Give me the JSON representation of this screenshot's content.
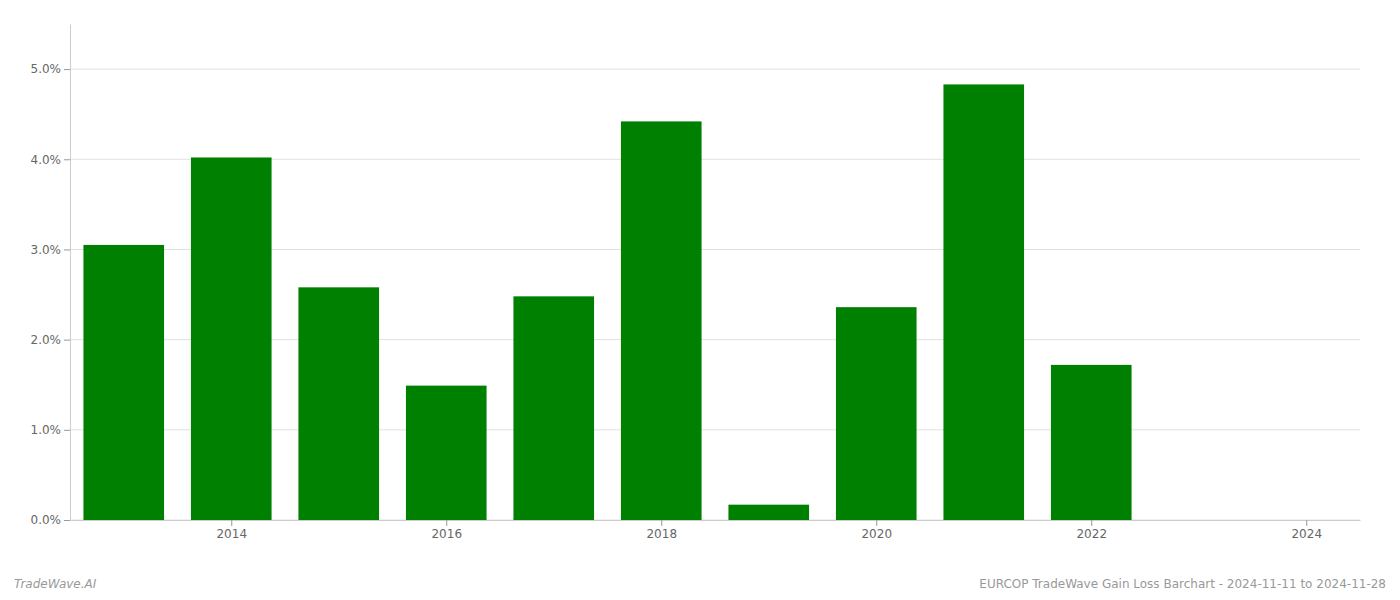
{
  "chart_data": {
    "type": "bar",
    "x": [
      2013,
      2014,
      2015,
      2016,
      2017,
      2018,
      2019,
      2020,
      2021,
      2022,
      2023
    ],
    "values": [
      0.0305,
      0.0402,
      0.0258,
      0.0149,
      0.0248,
      0.0442,
      0.0017,
      0.0236,
      0.0483,
      0.0172,
      0.0
    ],
    "color": "#008000",
    "xlim": [
      2012.5,
      2024.5
    ],
    "xticks": [
      2014,
      2016,
      2018,
      2020,
      2022,
      2024
    ],
    "ylim": [
      0,
      0.055
    ],
    "yticks": [
      {
        "value": 0.0,
        "label": "0.0%"
      },
      {
        "value": 0.01,
        "label": "1.0%"
      },
      {
        "value": 0.02,
        "label": "2.0%"
      },
      {
        "value": 0.03,
        "label": "3.0%"
      },
      {
        "value": 0.04,
        "label": "4.0%"
      },
      {
        "value": 0.05,
        "label": "5.0%"
      }
    ],
    "grid": true,
    "annotations": [
      "TradeWave.AI",
      "EURCOP TradeWave Gain Loss Barchart - 2024-11-11 to 2024-11-28"
    ]
  }
}
